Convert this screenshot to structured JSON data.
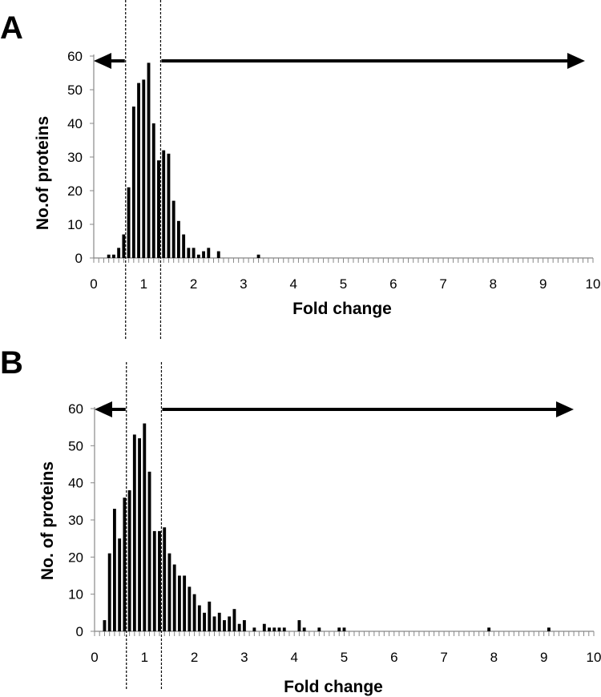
{
  "chart_data": [
    {
      "panel": "A",
      "type": "bar",
      "xlabel": "Fold change",
      "ylabel": "No.of proteins",
      "xlim": [
        0,
        10
      ],
      "ylim": [
        0,
        60
      ],
      "xticks": [
        "0",
        "1",
        "2",
        "3",
        "4",
        "5",
        "6",
        "7",
        "8",
        "9",
        "10"
      ],
      "yticks": [
        "0",
        "10",
        "20",
        "30",
        "40",
        "50",
        "60"
      ],
      "bin_width": 0.1,
      "x": [
        0.3,
        0.4,
        0.5,
        0.6,
        0.7,
        0.8,
        0.9,
        1.0,
        1.1,
        1.2,
        1.3,
        1.4,
        1.5,
        1.6,
        1.7,
        1.8,
        1.9,
        2.0,
        2.1,
        2.2,
        2.3,
        2.5,
        3.3
      ],
      "values": [
        1,
        1,
        3,
        7,
        21,
        45,
        52,
        53,
        58,
        40,
        29,
        32,
        31,
        17,
        11,
        7,
        3,
        3,
        1,
        2,
        3,
        2,
        1
      ],
      "cutoffs": [
        0.67,
        1.5
      ],
      "arrows": [
        "left",
        "right"
      ],
      "grid": false
    },
    {
      "panel": "B",
      "type": "bar",
      "xlabel": "Fold change",
      "ylabel": "No. of proteins",
      "xlim": [
        0,
        10
      ],
      "ylim": [
        0,
        60
      ],
      "xticks": [
        "0",
        "1",
        "2",
        "3",
        "4",
        "5",
        "6",
        "7",
        "8",
        "9",
        "10"
      ],
      "yticks": [
        "0",
        "10",
        "20",
        "30",
        "40",
        "50",
        "60"
      ],
      "bin_width": 0.1,
      "x": [
        0.2,
        0.3,
        0.4,
        0.5,
        0.6,
        0.7,
        0.8,
        0.9,
        1.0,
        1.1,
        1.2,
        1.3,
        1.4,
        1.5,
        1.6,
        1.7,
        1.8,
        1.9,
        2.0,
        2.1,
        2.2,
        2.3,
        2.4,
        2.5,
        2.6,
        2.7,
        2.8,
        2.9,
        3.0,
        3.2,
        3.4,
        3.5,
        3.6,
        3.7,
        3.8,
        4.1,
        4.2,
        4.5,
        4.9,
        5.0,
        7.9,
        9.1
      ],
      "values": [
        3,
        21,
        33,
        25,
        36,
        38,
        53,
        52,
        56,
        43,
        27,
        27,
        28,
        21,
        18,
        15,
        15,
        12,
        10,
        7,
        5,
        8,
        4,
        5,
        3,
        4,
        6,
        2,
        3,
        1,
        2,
        1,
        1,
        1,
        1,
        3,
        1,
        1,
        1,
        1,
        1,
        1
      ],
      "cutoffs": [
        0.67,
        1.5
      ],
      "arrows": [
        "left",
        "right"
      ],
      "grid": false
    }
  ],
  "panels": {
    "a": {
      "label": "A",
      "xlabel": "Fold change",
      "ylabel": "No.of proteins"
    },
    "b": {
      "label": "B",
      "xlabel": "Fold change",
      "ylabel": "No. of proteins"
    }
  }
}
